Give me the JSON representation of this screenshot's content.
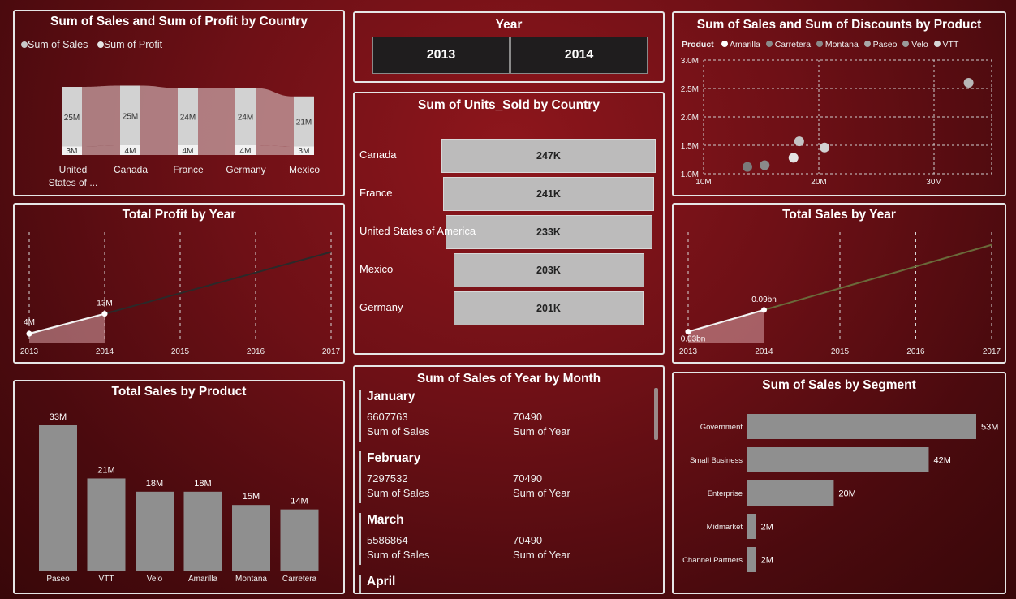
{
  "panel_country": {
    "title": "Sum of Sales and Sum of Profit by Country",
    "legend": [
      "Sum of  Sales",
      "Sum of  Profit"
    ],
    "categories": [
      "United States of ...",
      "Canada",
      "France",
      "Germany",
      "Mexico"
    ],
    "sales_labels": [
      "25M",
      "25M",
      "24M",
      "24M",
      "21M"
    ],
    "profit_labels": [
      "3M",
      "4M",
      "4M",
      "4M",
      "3M"
    ]
  },
  "year_slicer": {
    "title": "Year",
    "options": [
      "2013",
      "2014"
    ]
  },
  "discounts_panel": {
    "title": "Sum of Sales and Sum of Discounts by Product",
    "legend_title": "Product",
    "legend": [
      "Amarilla",
      "Carretera",
      "Montana",
      "Paseo",
      "Velo",
      "VTT"
    ]
  },
  "units_panel": {
    "title": "Sum of Units_Sold by Country"
  },
  "profit_year_panel": {
    "title": "Total Profit by Year"
  },
  "sales_year_panel": {
    "title": "Total Sales by Year"
  },
  "product_panel": {
    "title": "Total Sales by Product"
  },
  "month_panel": {
    "title": "Sum of Sales of Year by Month",
    "items": [
      {
        "month": "January",
        "sales": "6607763",
        "year": "70490",
        "sales_label": "Sum of Sales",
        "year_label": "Sum of Year"
      },
      {
        "month": "February",
        "sales": "7297532",
        "year": "70490",
        "sales_label": "Sum of Sales",
        "year_label": "Sum of Year"
      },
      {
        "month": "March",
        "sales": "5586864",
        "year": "70490",
        "sales_label": "Sum of Sales",
        "year_label": "Sum of Year"
      },
      {
        "month": "April"
      }
    ]
  },
  "segment_panel": {
    "title": "Sum of Sales by Segment"
  },
  "chart_data": [
    {
      "type": "area",
      "title": "Sum of Sales and Sum of Profit by Country",
      "categories": [
        "United States of ...",
        "Canada",
        "France",
        "Germany",
        "Mexico"
      ],
      "series": [
        {
          "name": "Sum of  Sales",
          "values": [
            25,
            25,
            24,
            24,
            21
          ],
          "labels": [
            "25M",
            "25M",
            "24M",
            "24M",
            "21M"
          ]
        },
        {
          "name": "Sum of  Profit",
          "values": [
            3,
            4,
            4,
            4,
            3
          ],
          "labels": [
            "3M",
            "4M",
            "4M",
            "4M",
            "3M"
          ]
        }
      ],
      "legend": "top-left"
    },
    {
      "type": "scatter",
      "title": "Sum of Sales and Sum of Discounts by Product",
      "xlabel": "",
      "ylabel": "",
      "x_ticks": [
        "10M",
        "20M",
        "30M"
      ],
      "y_ticks": [
        "1.0M",
        "1.5M",
        "2.0M",
        "2.5M",
        "3.0M"
      ],
      "xlim": [
        10,
        35
      ],
      "ylim": [
        1.0,
        3.0
      ],
      "points": [
        {
          "x": 13.8,
          "y": 1.12
        },
        {
          "x": 15.3,
          "y": 1.15
        },
        {
          "x": 17.8,
          "y": 1.28
        },
        {
          "x": 18.3,
          "y": 1.57
        },
        {
          "x": 20.5,
          "y": 1.46
        },
        {
          "x": 33.0,
          "y": 2.6
        }
      ],
      "legend": "top-left",
      "grid": true
    },
    {
      "type": "bar",
      "title": "Sum of Units_Sold by Country",
      "categories": [
        "Canada",
        "France",
        "United States of America",
        "Mexico",
        "Germany"
      ],
      "values": [
        247,
        241,
        233,
        203,
        201
      ],
      "labels": [
        "247K",
        "241K",
        "233K",
        "203K",
        "201K"
      ]
    },
    {
      "type": "line",
      "title": "Total Profit by Year",
      "x": [
        2013,
        2014,
        2015,
        2016,
        2017
      ],
      "values": [
        4,
        13
      ],
      "labels": [
        "4M",
        "13M"
      ],
      "trend_end": 41
    },
    {
      "type": "line",
      "title": "Total Sales by Year",
      "x": [
        2013,
        2014,
        2015,
        2016,
        2017
      ],
      "values": [
        0.03,
        0.09
      ],
      "labels": [
        "0.03bn",
        "0.09bn"
      ],
      "trend_end": 0.27
    },
    {
      "type": "bar",
      "title": "Total Sales by Product",
      "categories": [
        "Paseo",
        "VTT",
        "Velo",
        "Amarilla",
        "Montana",
        "Carretera"
      ],
      "values": [
        33,
        21,
        18,
        18,
        15,
        14
      ],
      "labels": [
        "33M",
        "21M",
        "18M",
        "18M",
        "15M",
        "14M"
      ]
    },
    {
      "type": "bar",
      "title": "Sum of Sales by Segment",
      "categories": [
        "Government",
        "Small Business",
        "Enterprise",
        "Midmarket",
        "Channel Partners"
      ],
      "values": [
        53,
        42,
        20,
        2,
        2
      ],
      "labels": [
        "53M",
        "42M",
        "20M",
        "2M",
        "2M"
      ]
    }
  ]
}
